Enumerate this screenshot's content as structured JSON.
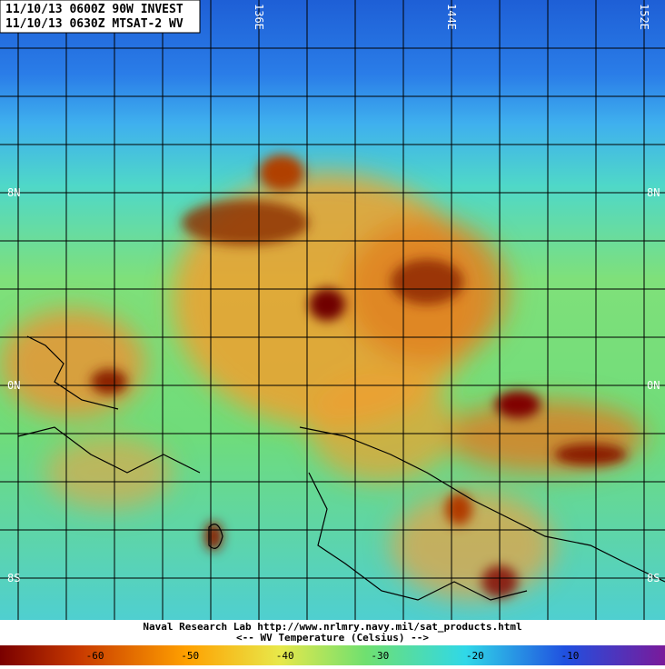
{
  "header": {
    "line1": "11/10/13 0600Z  90W INVEST",
    "line2": "11/10/13 0630Z  MTSAT-2 WV"
  },
  "grid_labels": {
    "lon": [
      "136E",
      "144E",
      "152E"
    ],
    "lat": [
      "8N",
      "0N",
      "8S"
    ]
  },
  "footer": {
    "credit": "Naval Research Lab http://www.nrlmry.navy.mil/sat_products.html",
    "legend": "<--   WV Temperature (Celsius)   -->"
  },
  "colorbar": {
    "range": [
      -70,
      0
    ],
    "ticks": [
      -60,
      -50,
      -40,
      -30,
      -20,
      -10
    ]
  }
}
